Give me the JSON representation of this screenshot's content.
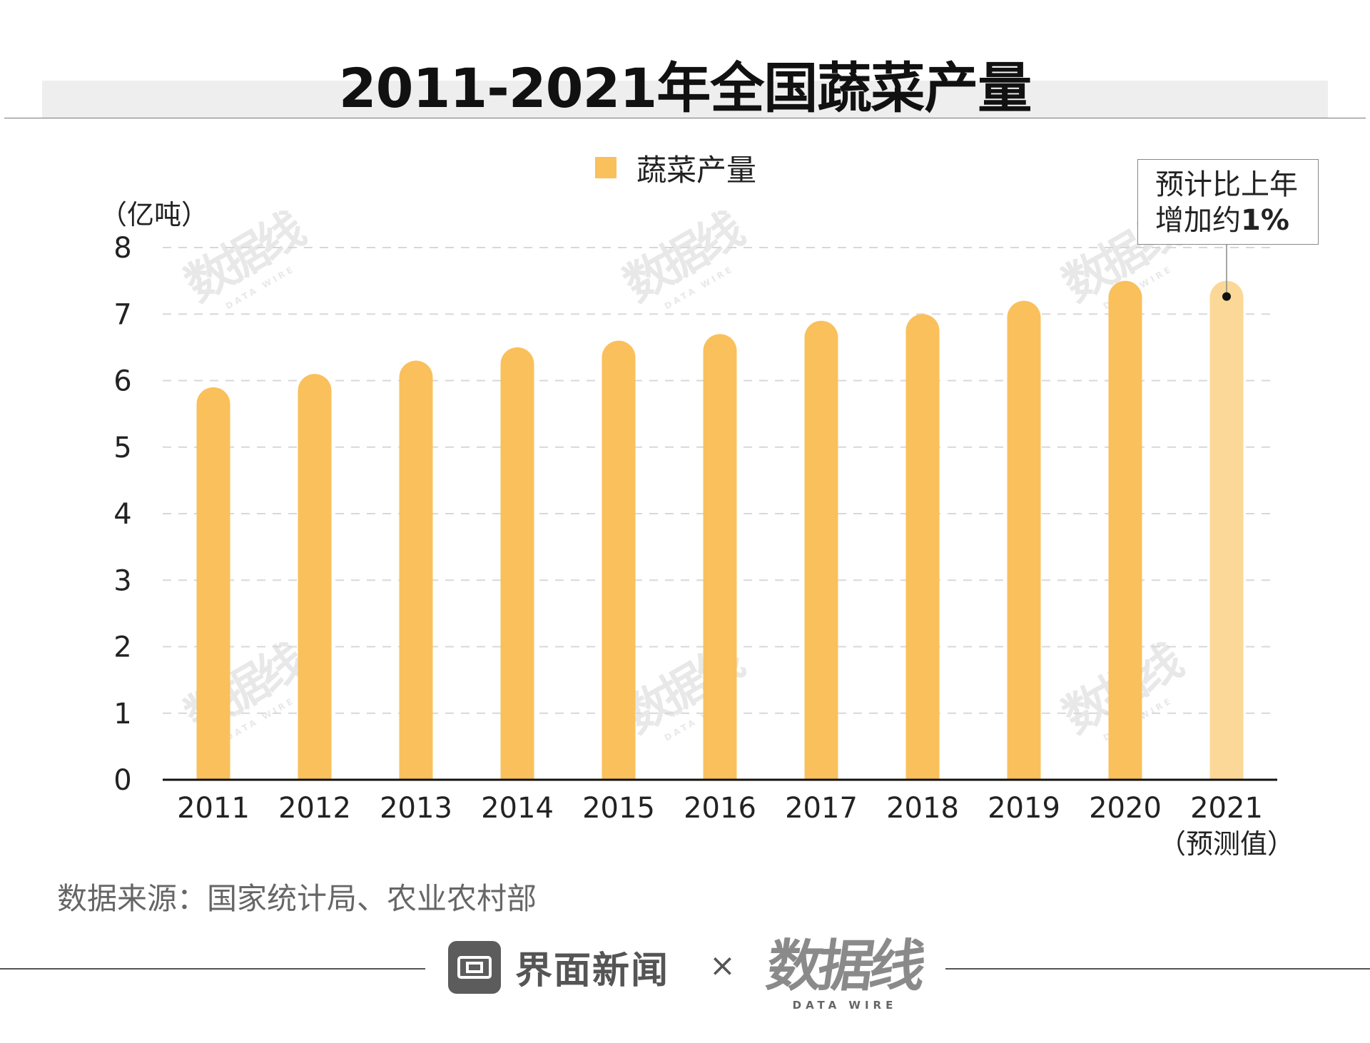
{
  "title": "2011-2021年全国蔬菜产量",
  "legend_label": "蔬菜产量",
  "unit_label": "（亿吨）",
  "annotation": {
    "line1": "预计比上年",
    "line2_text": "增加约",
    "line2_bold": "1%"
  },
  "source": "数据来源：国家统计局、农业农村部",
  "footer": {
    "brand_name": "界面新闻",
    "times": "×",
    "datawire_mark": "数据线",
    "datawire_sub": "DATA WIRE"
  },
  "watermark": {
    "mark": "数据线",
    "sub": "DATA WIRE"
  },
  "chart_data": {
    "type": "bar",
    "title": "2011-2021年全国蔬菜产量",
    "ylabel": "（亿吨）",
    "xlabel": "",
    "categories": [
      "2011",
      "2012",
      "2013",
      "2014",
      "2015",
      "2016",
      "2017",
      "2018",
      "2019",
      "2020",
      "2021"
    ],
    "category_sublabels": [
      "",
      "",
      "",
      "",
      "",
      "",
      "",
      "",
      "",
      "",
      "（预测值）"
    ],
    "series": [
      {
        "name": "蔬菜产量",
        "values": [
          5.9,
          6.1,
          6.3,
          6.5,
          6.6,
          6.7,
          6.9,
          7.0,
          7.2,
          7.5,
          7.5
        ]
      }
    ],
    "forecast": [
      false,
      false,
      false,
      false,
      false,
      false,
      false,
      false,
      false,
      false,
      true
    ],
    "ylim": [
      0,
      8
    ],
    "yticks": [
      0,
      1,
      2,
      3,
      4,
      5,
      6,
      7,
      8
    ],
    "grid": true,
    "legend_position": "top-center",
    "colors": {
      "bar": "#f9c05b",
      "forecast_bar": "#fbd897",
      "grid": "#d8d8d8",
      "axis": "#111111"
    }
  }
}
